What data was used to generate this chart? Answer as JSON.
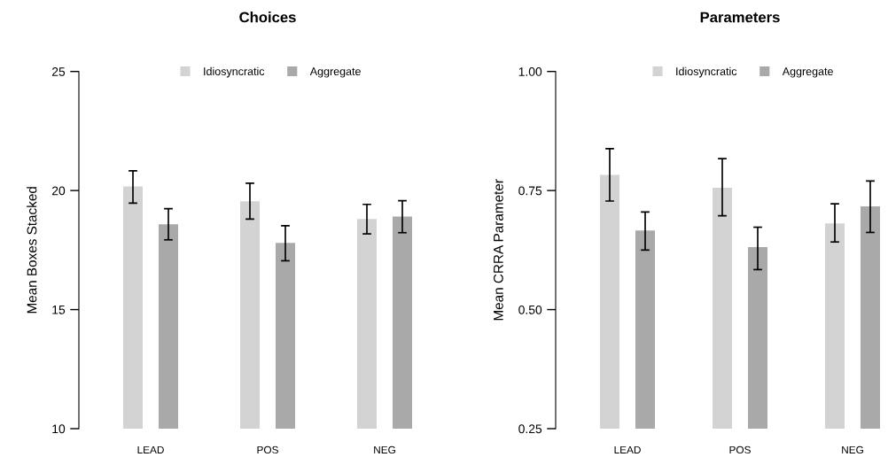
{
  "chart_data": [
    {
      "type": "bar",
      "title": "Choices",
      "ylabel": "Mean Boxes Stacked",
      "categories": [
        "LEAD",
        "POS",
        "NEG"
      ],
      "series": [
        {
          "name": "Idiosyncratic",
          "color": "#d3d3d3",
          "values": [
            20.17,
            19.55,
            18.81
          ],
          "errors": [
            [
              19.47,
              20.83
            ],
            [
              18.8,
              20.31
            ],
            [
              18.18,
              19.42
            ]
          ]
        },
        {
          "name": "Aggregate",
          "color": "#a9a9a9",
          "values": [
            18.58,
            17.8,
            18.91
          ],
          "errors": [
            [
              17.93,
              19.24
            ],
            [
              17.05,
              18.52
            ],
            [
              18.23,
              19.57
            ]
          ]
        }
      ],
      "ylim": [
        10,
        25
      ],
      "yticks": [
        10,
        15,
        20,
        25
      ],
      "grid": false,
      "legend": "top"
    },
    {
      "type": "bar",
      "title": "Parameters",
      "ylabel": "Mean CRRA Parameter",
      "categories": [
        "LEAD",
        "POS",
        "NEG"
      ],
      "series": [
        {
          "name": "Idiosyncratic",
          "color": "#d3d3d3",
          "values": [
            0.783,
            0.756,
            0.681
          ],
          "errors": [
            [
              0.728,
              0.838
            ],
            [
              0.697,
              0.817
            ],
            [
              0.642,
              0.722
            ]
          ]
        },
        {
          "name": "Aggregate",
          "color": "#a9a9a9",
          "values": [
            0.666,
            0.631,
            0.717
          ],
          "errors": [
            [
              0.625,
              0.705
            ],
            [
              0.584,
              0.673
            ],
            [
              0.662,
              0.77
            ]
          ]
        }
      ],
      "ylim": [
        0.25,
        1.0
      ],
      "yticks": [
        {
          "value": 0.25,
          "label": "0.25"
        },
        {
          "value": 0.5,
          "label": "0.50"
        },
        {
          "value": 0.75,
          "label": "0.75"
        },
        {
          "value": 1.0,
          "label": "1.00"
        }
      ],
      "grid": false,
      "legend": "top"
    }
  ]
}
